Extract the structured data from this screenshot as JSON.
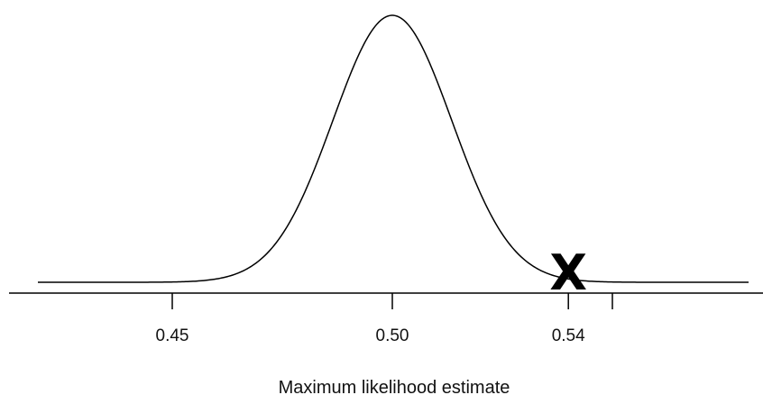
{
  "chart_data": {
    "type": "line",
    "title": "",
    "xlabel": "Maximum likelihood estimate",
    "ylabel": "",
    "curve": {
      "distribution": "normal",
      "mean": 0.5,
      "sd": 0.0135
    },
    "xlim": [
      0.42,
      0.58
    ],
    "x_ticks": [
      0.45,
      0.5,
      0.54,
      0.55
    ],
    "x_tick_labels": [
      "0.45",
      "0.50",
      "0.54",
      ""
    ],
    "marker": {
      "symbol": "X",
      "x": 0.54
    },
    "grid": false,
    "legend": "none"
  }
}
